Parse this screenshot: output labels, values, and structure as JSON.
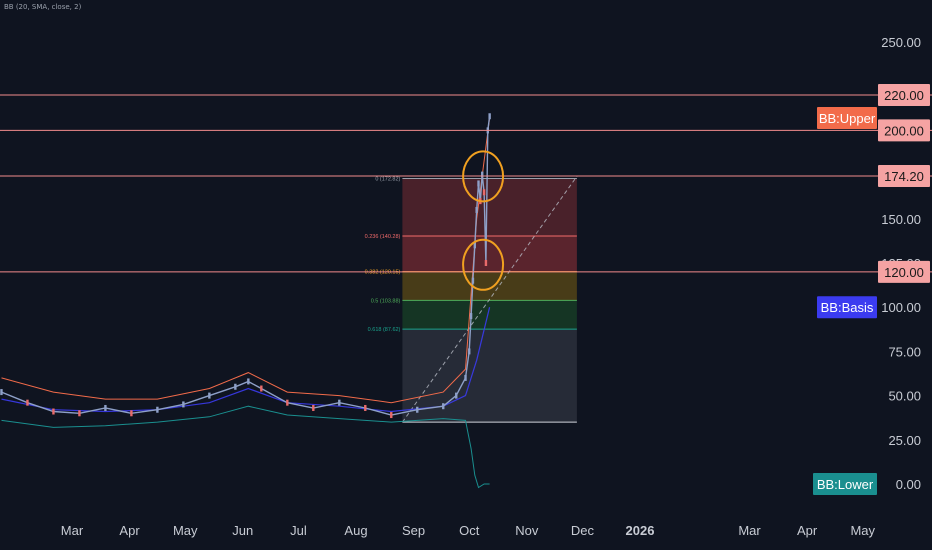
{
  "indicator": {
    "label": "BB (20, SMA, close, 2)"
  },
  "colors": {
    "background": "#0f1420",
    "axis_text": "#c8ccd4",
    "hline": "#f28b8b",
    "hline_badge": "#f5a3a3",
    "bb_upper": "#f26b4a",
    "bb_basis": "#3b3bf0",
    "bb_lower": "#1a8f8f",
    "candle_up": "#8ea0c8",
    "candle_down": "#e86b6b",
    "fib_zone_top": "#7a2b33",
    "fib_zone_orange": "#5c4a16",
    "fib_zone_green": "#173d26",
    "fib_zone_teal": "#12363a",
    "fib_zone_gray": "#2a2f3c",
    "highlight_circle": "#f0a020"
  },
  "chart_data": {
    "type": "candlestick",
    "y_axis": {
      "ylim": [
        -5,
        265
      ],
      "ticks": [
        0,
        25,
        50,
        75,
        100,
        125,
        150,
        200,
        250
      ],
      "tick_labels": [
        "0.00",
        "25.00",
        "50.00",
        "75.00",
        "100.00",
        "125.00",
        "150.00",
        "200.00",
        "250.00"
      ]
    },
    "x_axis": {
      "labels": [
        "Mar",
        "Apr",
        "May",
        "Jun",
        "Jul",
        "Aug",
        "Sep",
        "Oct",
        "Nov",
        "Dec",
        "2026",
        "Mar",
        "Apr",
        "May"
      ],
      "label_dates": [
        "2025-03-01",
        "2025-04-01",
        "2025-05-01",
        "2025-06-01",
        "2025-07-01",
        "2025-08-01",
        "2025-09-01",
        "2025-10-01",
        "2025-11-01",
        "2025-12-01",
        "2026-01-01",
        "2026-03-01",
        "2026-04-01",
        "2026-05-01"
      ],
      "bold_labels": [
        "2026"
      ]
    },
    "horizontal_lines": [
      {
        "value": 220,
        "label": "220.00"
      },
      {
        "value": 200,
        "label": "200.00"
      },
      {
        "value": 174.2,
        "label": "174.20"
      },
      {
        "value": 120,
        "label": "120.00"
      }
    ],
    "band_labels": [
      {
        "name": "BB:Upper",
        "value": 207
      },
      {
        "name": "BB:Basis",
        "value": 100
      },
      {
        "name": "BB:Lower",
        "value": 0
      }
    ],
    "fibonacci": {
      "start_date": "2025-08-26",
      "end_date": "2025-11-28",
      "levels": [
        {
          "ratio": "0",
          "label": "0 (172.82)",
          "value": 172.82
        },
        {
          "ratio": "0.236",
          "label": "0.236 (140.28)",
          "value": 140.28
        },
        {
          "ratio": "0.382",
          "label": "0.382 (120.15)",
          "value": 120.15
        },
        {
          "ratio": "0.5",
          "label": "0.5 (103.88)",
          "value": 103.88
        },
        {
          "ratio": "0.618",
          "label": "0.618 (87.62)",
          "value": 87.62
        },
        {
          "ratio": "1",
          "label": "",
          "value": 35
        }
      ],
      "trend_line": {
        "from": {
          "date": "2025-08-26",
          "value": 35
        },
        "to": {
          "date": "2025-11-28",
          "value": 174
        }
      }
    },
    "highlights": [
      {
        "date": "2025-10-09",
        "value": 174
      },
      {
        "date": "2025-10-09",
        "value": 124
      }
    ],
    "price": {
      "dates": [
        "2025-01-22",
        "2025-02-05",
        "2025-02-19",
        "2025-03-05",
        "2025-03-19",
        "2025-04-02",
        "2025-04-16",
        "2025-04-30",
        "2025-05-14",
        "2025-05-28",
        "2025-06-04",
        "2025-06-11",
        "2025-06-25",
        "2025-07-09",
        "2025-07-23",
        "2025-08-06",
        "2025-08-20",
        "2025-09-03",
        "2025-09-17",
        "2025-09-24",
        "2025-09-29",
        "2025-10-01",
        "2025-10-02",
        "2025-10-03",
        "2025-10-04",
        "2025-10-05",
        "2025-10-06",
        "2025-10-07",
        "2025-10-08",
        "2025-10-09",
        "2025-10-10",
        "2025-10-11",
        "2025-10-12"
      ],
      "close": [
        52,
        46,
        41,
        40,
        43,
        40,
        42,
        45,
        50,
        55,
        58,
        54,
        46,
        43,
        46,
        43,
        39,
        42,
        44,
        50,
        60,
        75,
        95,
        115,
        135,
        155,
        170,
        160,
        175,
        165,
        125,
        200,
        208
      ]
    },
    "bb_upper": {
      "dates": [
        "2025-01-22",
        "2025-02-19",
        "2025-03-19",
        "2025-04-16",
        "2025-05-14",
        "2025-06-04",
        "2025-06-25",
        "2025-07-23",
        "2025-08-20",
        "2025-09-17",
        "2025-09-29",
        "2025-10-05",
        "2025-10-12"
      ],
      "values": [
        60,
        52,
        48,
        48,
        54,
        63,
        52,
        50,
        46,
        52,
        65,
        150,
        207
      ]
    },
    "bb_basis": {
      "dates": [
        "2025-01-22",
        "2025-02-19",
        "2025-03-19",
        "2025-04-16",
        "2025-05-14",
        "2025-06-04",
        "2025-06-25",
        "2025-07-23",
        "2025-08-20",
        "2025-09-17",
        "2025-09-29",
        "2025-10-05",
        "2025-10-12"
      ],
      "values": [
        48,
        42,
        41,
        42,
        46,
        54,
        46,
        44,
        41,
        44,
        50,
        70,
        100
      ]
    },
    "bb_lower": {
      "dates": [
        "2025-01-22",
        "2025-02-19",
        "2025-03-19",
        "2025-04-16",
        "2025-05-14",
        "2025-06-04",
        "2025-06-25",
        "2025-07-23",
        "2025-08-20",
        "2025-09-17",
        "2025-09-29",
        "2025-10-02",
        "2025-10-04",
        "2025-10-06",
        "2025-10-09",
        "2025-10-12"
      ],
      "values": [
        36,
        32,
        33,
        35,
        38,
        44,
        39,
        37,
        35,
        37,
        36,
        20,
        5,
        -2,
        0,
        0
      ]
    }
  }
}
